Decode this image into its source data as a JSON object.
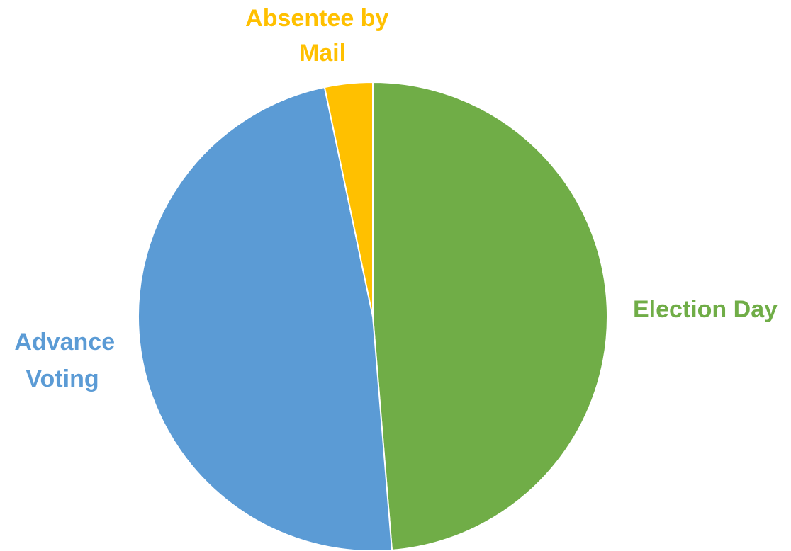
{
  "chart_data": {
    "type": "pie",
    "title": "",
    "slices": [
      {
        "label": "Election Day",
        "value": 48.7,
        "color": "#70AD47"
      },
      {
        "label": "Advance Voting",
        "value": 48.0,
        "color": "#5B9BD5"
      },
      {
        "label": "Absentee by Mail",
        "value": 3.3,
        "color": "#FFC000"
      }
    ],
    "start_angle_deg": 0,
    "direction": "clockwise",
    "legend": "none",
    "data_labels": "category names outside slices"
  }
}
